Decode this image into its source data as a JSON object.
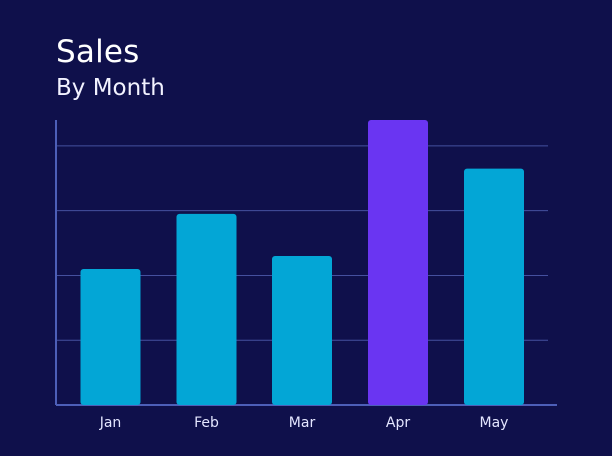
{
  "chart_data": {
    "type": "bar",
    "title": "Sales",
    "subtitle": "By Month",
    "categories": [
      "Jan",
      "Feb",
      "Mar",
      "Apr",
      "May"
    ],
    "values": [
      2.1,
      2.95,
      2.3,
      4.4,
      3.65
    ],
    "highlight_index": 3,
    "xlabel": "",
    "ylabel": "",
    "ylim": [
      0,
      4.4
    ],
    "grid": true,
    "tick_labels_visible": false
  },
  "colors": {
    "background": "#0f104b",
    "bar": "#03a6d6",
    "highlight_bar": "#6a35f2",
    "axis": "#4d5fb8",
    "grid": "#45509f",
    "text": "#ffffff",
    "tick_text": "#e4e6ff"
  }
}
